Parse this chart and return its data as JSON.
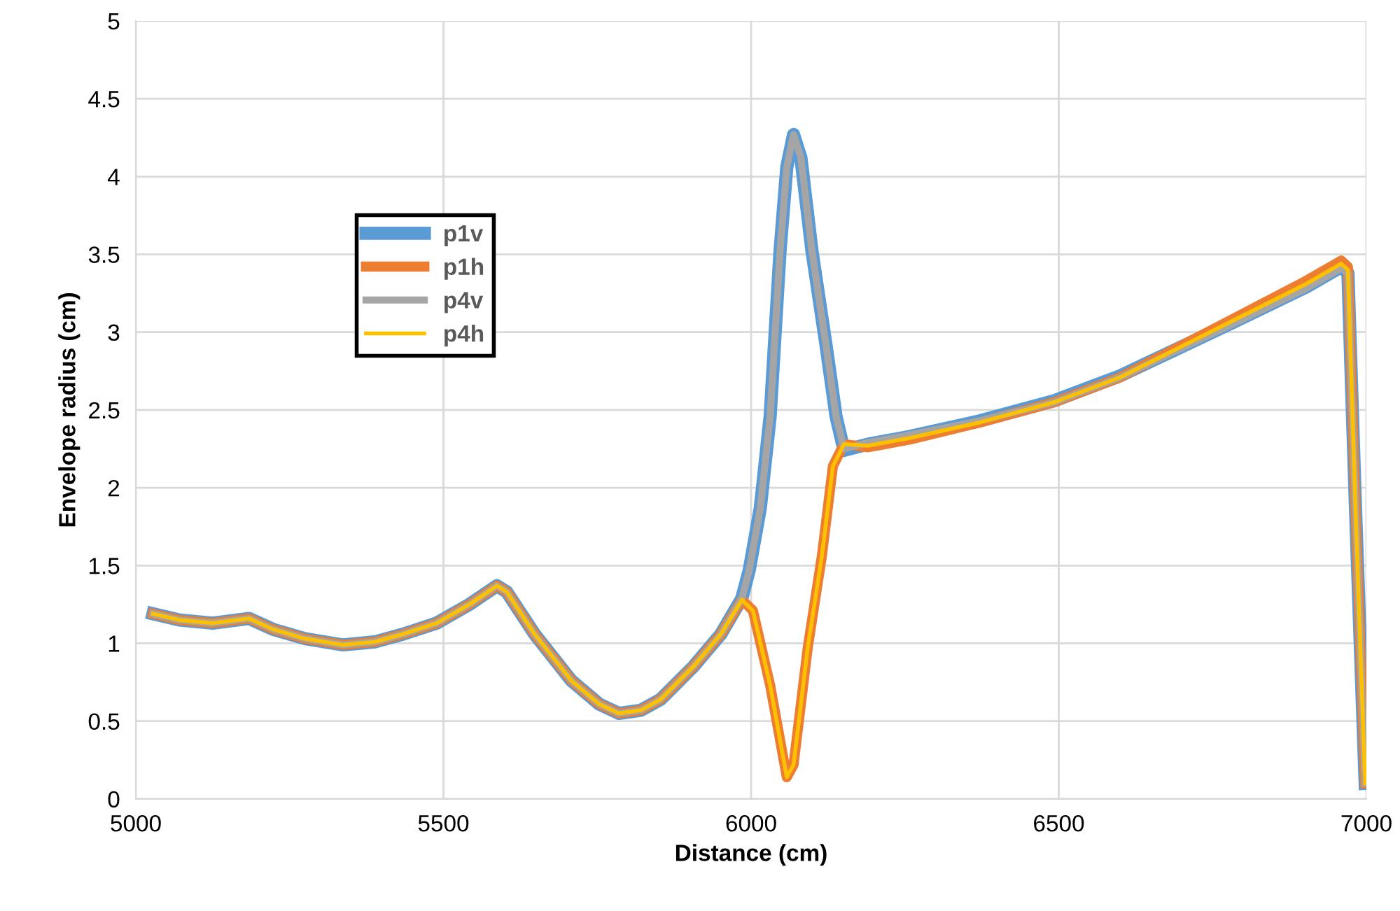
{
  "chart_data": {
    "type": "line",
    "xlabel": "Distance (cm)",
    "ylabel": "Envelope radius (cm)",
    "xlim": [
      5000,
      7000
    ],
    "xticks": [
      5000,
      5500,
      6000,
      6500,
      7000
    ],
    "ylim": [
      0,
      5
    ],
    "yticks": [
      0,
      0.5,
      1,
      1.5,
      2,
      2.5,
      3,
      3.5,
      4,
      4.5,
      5
    ],
    "grid": true,
    "legend": "left",
    "marker": "none",
    "line_style": "solid",
    "series": [
      {
        "name": "p1v",
        "color": "#5b9bd5",
        "x": [
          5028,
          5071,
          5125,
          5184,
          5223,
          5275,
          5337,
          5389,
          5435,
          5489,
          5542,
          5587,
          5603,
          5648,
          5708,
          5753,
          5785,
          5821,
          5853,
          5906,
          5951,
          5985,
          5997,
          6015,
          6031,
          6047,
          6058,
          6069,
          6081,
          6099,
          6122,
          6138,
          6151,
          6190,
          6258,
          6372,
          6493,
          6600,
          6766,
          6902,
          6959,
          6970,
          6982,
          6998
        ],
        "values": [
          1.19,
          1.15,
          1.13,
          1.16,
          1.09,
          1.03,
          0.99,
          1.01,
          1.06,
          1.13,
          1.25,
          1.37,
          1.33,
          1.06,
          0.76,
          0.61,
          0.55,
          0.57,
          0.64,
          0.85,
          1.06,
          1.29,
          1.47,
          1.87,
          2.46,
          3.52,
          4.06,
          4.27,
          4.12,
          3.52,
          2.91,
          2.46,
          2.24,
          2.28,
          2.33,
          2.43,
          2.56,
          2.72,
          3.03,
          3.29,
          3.42,
          3.38,
          1.9,
          0.1
        ]
      },
      {
        "name": "p1h",
        "color": "#ed7d31",
        "x": [
          5028,
          5071,
          5125,
          5184,
          5223,
          5275,
          5337,
          5389,
          5435,
          5489,
          5542,
          5587,
          5603,
          5648,
          5708,
          5753,
          5785,
          5821,
          5853,
          5906,
          5951,
          5985,
          6003,
          6031,
          6058,
          6069,
          6092,
          6115,
          6133,
          6151,
          6190,
          6258,
          6372,
          6493,
          6600,
          6766,
          6902,
          6959,
          6970,
          6982,
          6998
        ],
        "values": [
          1.19,
          1.15,
          1.13,
          1.16,
          1.09,
          1.03,
          0.99,
          1.01,
          1.06,
          1.13,
          1.25,
          1.37,
          1.33,
          1.06,
          0.76,
          0.61,
          0.55,
          0.57,
          0.64,
          0.85,
          1.06,
          1.28,
          1.21,
          0.73,
          0.14,
          0.22,
          0.97,
          1.56,
          2.14,
          2.28,
          2.26,
          2.31,
          2.42,
          2.55,
          2.71,
          3.05,
          3.33,
          3.46,
          3.42,
          1.9,
          0.1
        ]
      },
      {
        "name": "p4v",
        "color": "#a5a5a5",
        "x": [
          5028,
          5071,
          5125,
          5184,
          5223,
          5275,
          5337,
          5389,
          5435,
          5489,
          5542,
          5587,
          5603,
          5648,
          5708,
          5753,
          5785,
          5821,
          5853,
          5906,
          5951,
          5985,
          5997,
          6015,
          6031,
          6047,
          6058,
          6069,
          6081,
          6099,
          6122,
          6138,
          6151,
          6190,
          6258,
          6372,
          6493,
          6600,
          6766,
          6902,
          6959,
          6970,
          6982,
          6998
        ],
        "values": [
          1.19,
          1.15,
          1.13,
          1.16,
          1.09,
          1.03,
          0.99,
          1.01,
          1.06,
          1.13,
          1.25,
          1.37,
          1.33,
          1.06,
          0.76,
          0.61,
          0.55,
          0.57,
          0.64,
          0.85,
          1.06,
          1.29,
          1.47,
          1.87,
          2.46,
          3.52,
          4.06,
          4.27,
          4.12,
          3.52,
          2.91,
          2.46,
          2.25,
          2.29,
          2.34,
          2.43,
          2.55,
          2.71,
          3.02,
          3.28,
          3.41,
          3.38,
          1.9,
          0.1
        ]
      },
      {
        "name": "p4h",
        "color": "#ffc000",
        "x": [
          5028,
          5071,
          5125,
          5184,
          5223,
          5275,
          5337,
          5389,
          5435,
          5489,
          5542,
          5587,
          5603,
          5648,
          5708,
          5753,
          5785,
          5821,
          5853,
          5906,
          5951,
          5985,
          6003,
          6031,
          6058,
          6069,
          6092,
          6115,
          6133,
          6151,
          6190,
          6258,
          6372,
          6493,
          6600,
          6766,
          6902,
          6959,
          6970,
          6982,
          6998
        ],
        "values": [
          1.19,
          1.15,
          1.13,
          1.16,
          1.09,
          1.03,
          0.99,
          1.01,
          1.06,
          1.13,
          1.25,
          1.37,
          1.33,
          1.06,
          0.76,
          0.61,
          0.55,
          0.57,
          0.64,
          0.85,
          1.06,
          1.28,
          1.21,
          0.73,
          0.14,
          0.22,
          0.97,
          1.56,
          2.14,
          2.28,
          2.27,
          2.32,
          2.42,
          2.55,
          2.71,
          3.04,
          3.31,
          3.44,
          3.4,
          1.9,
          0.1
        ]
      }
    ]
  }
}
